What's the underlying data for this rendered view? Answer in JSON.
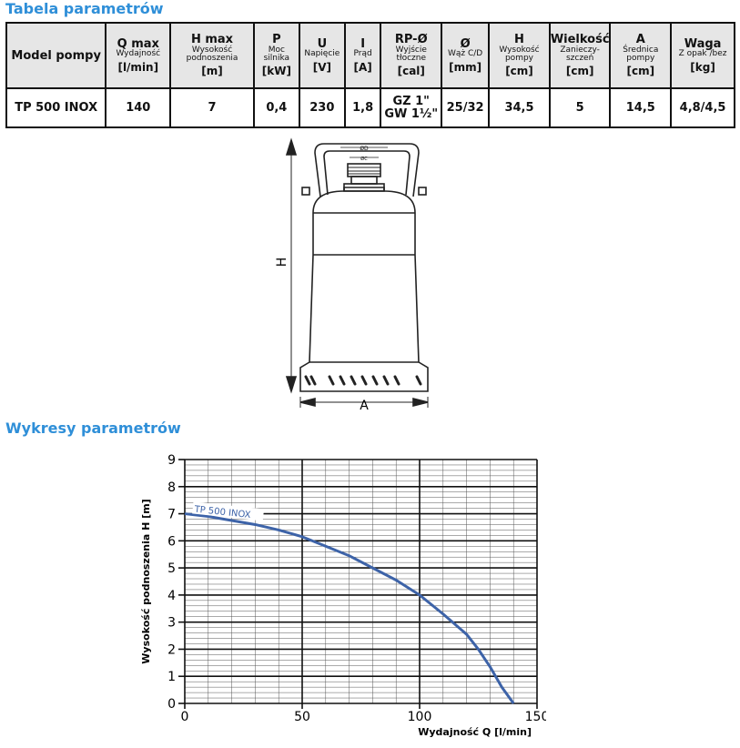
{
  "table_title": "Tabela parametrów",
  "chart_section_title": "Wykresy parametrów",
  "table": {
    "headers": [
      {
        "main": "Model pompy",
        "sub": "",
        "unit": ""
      },
      {
        "main": "Q max",
        "sub": "Wydajność",
        "unit": "[l/min]"
      },
      {
        "main": "H max",
        "sub": "Wysokość podnoszenia",
        "unit": "[m]"
      },
      {
        "main": "P",
        "sub": "Moc silnika",
        "unit": "[kW]"
      },
      {
        "main": "U",
        "sub": "Napięcie",
        "unit": "[V]"
      },
      {
        "main": "I",
        "sub": "Prąd",
        "unit": "[A]"
      },
      {
        "main": "RP-Ø",
        "sub": "Wyjście tłoczne",
        "unit": "[cal]"
      },
      {
        "main": "Ø",
        "sub": "Wąż C/D",
        "unit": "[mm]"
      },
      {
        "main": "H",
        "sub": "Wysokość pompy",
        "unit": "[cm]"
      },
      {
        "main": "Wielkość",
        "sub": "Zanieczy-szczeń",
        "unit": "[cm]"
      },
      {
        "main": "A",
        "sub": "Średnica pompy",
        "unit": "[cm]"
      },
      {
        "main": "Waga",
        "sub": "Z opak /bez",
        "unit": "[kg]"
      }
    ],
    "row": {
      "model": "TP 500 INOX",
      "q_max": "140",
      "h_max": "7",
      "p": "0,4",
      "u": "230",
      "i": "1,8",
      "outlet_line1": "GZ 1\"",
      "outlet_line2": "GW 1½\"",
      "hose": "25/32",
      "pump_height": "34,5",
      "solids": "5",
      "diameter": "14,5",
      "weight": "4,8/4,5"
    }
  },
  "drawing": {
    "label_h": "H",
    "label_a": "A",
    "label_od": "ØD",
    "label_oc": "ØC"
  },
  "chart_data": {
    "type": "line",
    "xlabel": "Wydajność Q [l/min]",
    "ylabel": "Wysokość podnoszenia H [m]",
    "xlim": [
      0,
      150
    ],
    "ylim": [
      0,
      9
    ],
    "xticks": [
      "0",
      "50",
      "100",
      "150"
    ],
    "yticks": [
      "0",
      "1",
      "2",
      "3",
      "4",
      "5",
      "6",
      "7",
      "8",
      "9"
    ],
    "grid": true,
    "series": [
      {
        "name": "TP 500 INOX",
        "color": "#3d63a8",
        "x": [
          0,
          10,
          20,
          30,
          40,
          50,
          60,
          70,
          80,
          90,
          100,
          110,
          120,
          125,
          130,
          135,
          140
        ],
        "y": [
          7.0,
          6.9,
          6.75,
          6.6,
          6.4,
          6.15,
          5.8,
          5.45,
          5.0,
          4.55,
          4.0,
          3.3,
          2.55,
          2.0,
          1.35,
          0.6,
          0.0
        ]
      }
    ]
  }
}
